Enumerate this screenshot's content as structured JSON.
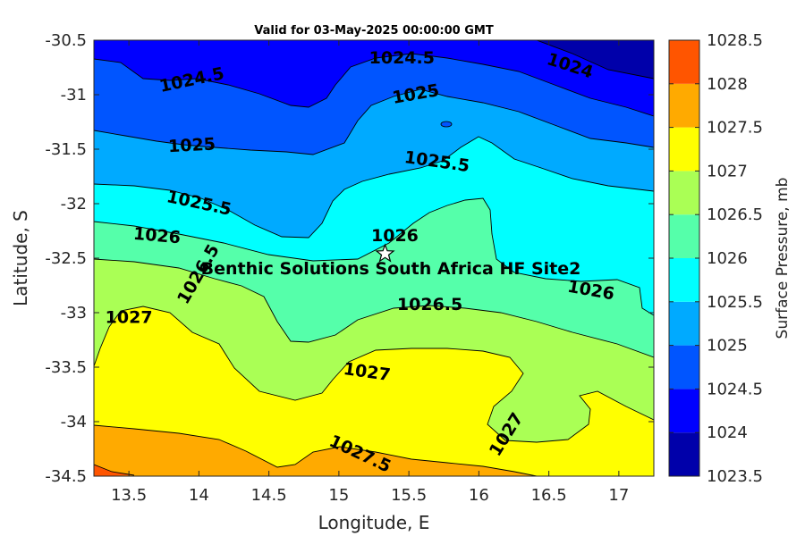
{
  "chart_data": {
    "type": "contour",
    "title": "Valid for 03-May-2025 00:00:00 GMT",
    "xlabel": "Longitude, E",
    "ylabel": "Latitude, S",
    "xlim": [
      13.25,
      17.25
    ],
    "ylim": [
      -34.5,
      -30.5
    ],
    "xticks": [
      "13.5",
      "14",
      "14.5",
      "15",
      "15.5",
      "16",
      "16.5",
      "17"
    ],
    "xtick_values": [
      13.5,
      14,
      14.5,
      15,
      15.5,
      16,
      16.5,
      17
    ],
    "yticks": [
      "-30.5",
      "-31",
      "-31.5",
      "-32",
      "-32.5",
      "-33",
      "-33.5",
      "-34",
      "-34.5"
    ],
    "ytick_values": [
      -30.5,
      -31,
      -31.5,
      -32,
      -32.5,
      -33,
      -33.5,
      -34,
      -34.5
    ],
    "colorbar": {
      "label": "Surface Pressure, mb",
      "levels": [
        1023.5,
        1024,
        1024.5,
        1025,
        1025.5,
        1026,
        1026.5,
        1027,
        1027.5,
        1028,
        1028.5
      ],
      "tick_labels": [
        "1023.5",
        "1024",
        "1024.5",
        "1025",
        "1025.5",
        "1026",
        "1026.5",
        "1027",
        "1027.5",
        "1028",
        "1028.5"
      ],
      "colors": [
        "#0000aa",
        "#0000ff",
        "#0055ff",
        "#00aaff",
        "#00ffff",
        "#55ffaa",
        "#aaff55",
        "#ffff00",
        "#ffaa00",
        "#ff5500",
        "#ff0000"
      ]
    },
    "contour_labels": [
      {
        "text": "1024.5",
        "lon": 13.95,
        "lat": -30.87
      },
      {
        "text": "1024.5",
        "lon": 15.45,
        "lat": -30.67
      },
      {
        "text": "1024",
        "lon": 16.65,
        "lat": -30.74
      },
      {
        "text": "1025",
        "lon": 15.55,
        "lat": -31.0
      },
      {
        "text": "1025",
        "lon": 13.95,
        "lat": -31.47
      },
      {
        "text": "1025.5",
        "lon": 15.7,
        "lat": -31.62
      },
      {
        "text": "1025.5",
        "lon": 14.0,
        "lat": -32.0
      },
      {
        "text": "1026",
        "lon": 13.7,
        "lat": -32.3
      },
      {
        "text": "1026",
        "lon": 15.4,
        "lat": -32.3
      },
      {
        "text": "1026.5",
        "lon": 14.0,
        "lat": -32.65
      },
      {
        "text": "1026",
        "lon": 16.8,
        "lat": -32.8
      },
      {
        "text": "1026.5",
        "lon": 15.65,
        "lat": -32.93
      },
      {
        "text": "1027",
        "lon": 13.5,
        "lat": -33.05
      },
      {
        "text": "1027",
        "lon": 15.2,
        "lat": -33.55
      },
      {
        "text": "1027",
        "lon": 16.2,
        "lat": -34.12
      },
      {
        "text": "1027.5",
        "lon": 15.15,
        "lat": -34.3
      }
    ],
    "site": {
      "name": "Benthic Solutions South Africa HF Site2",
      "lon": 15.33,
      "lat": -32.46
    }
  }
}
